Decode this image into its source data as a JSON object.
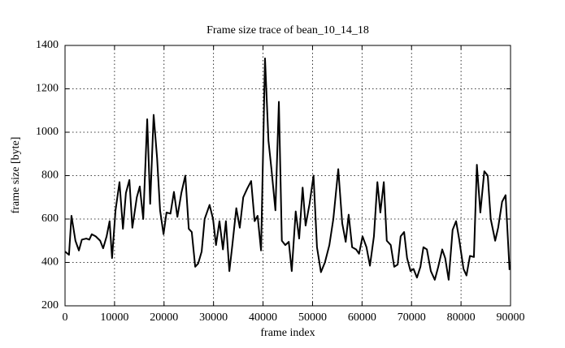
{
  "chart_data": {
    "type": "line",
    "title": "Frame size trace of bean_10_14_18",
    "xlabel": "frame index",
    "ylabel": "frame size [byte]",
    "x": [
      0,
      800,
      1300,
      2100,
      2800,
      3400,
      4300,
      4900,
      5400,
      6200,
      7100,
      7700,
      8400,
      9000,
      9500,
      10200,
      11000,
      11700,
      12300,
      13000,
      13600,
      14500,
      15100,
      15800,
      16600,
      17200,
      17900,
      18600,
      19200,
      19900,
      20500,
      21300,
      22000,
      22700,
      23500,
      24300,
      25000,
      25600,
      26300,
      26900,
      27600,
      28200,
      29200,
      29900,
      30500,
      31200,
      31900,
      32500,
      33200,
      33800,
      34600,
      35300,
      36000,
      36800,
      37600,
      38300,
      38900,
      39600,
      40400,
      41100,
      41700,
      42500,
      43200,
      43800,
      44500,
      45200,
      45800,
      46600,
      47300,
      48000,
      48600,
      49400,
      50200,
      50900,
      51700,
      52500,
      53400,
      54200,
      55200,
      56000,
      56700,
      57300,
      58000,
      58800,
      59400,
      60100,
      60900,
      61600,
      62400,
      63100,
      63700,
      64400,
      65000,
      65800,
      66500,
      67200,
      67800,
      68500,
      69100,
      69800,
      70400,
      71100,
      71800,
      72400,
      73100,
      73900,
      74700,
      75400,
      76200,
      76800,
      77500,
      78300,
      79000,
      79600,
      80500,
      81100,
      81800,
      82600,
      83200,
      83900,
      84700,
      85400,
      86000,
      86900,
      87500,
      88300,
      89000,
      89800
    ],
    "values": [
      450,
      435,
      615,
      500,
      455,
      505,
      510,
      505,
      530,
      520,
      500,
      465,
      520,
      590,
      420,
      640,
      770,
      555,
      720,
      780,
      560,
      700,
      750,
      600,
      1060,
      670,
      1080,
      880,
      640,
      530,
      630,
      625,
      725,
      610,
      720,
      800,
      555,
      540,
      380,
      395,
      450,
      600,
      665,
      600,
      480,
      590,
      460,
      590,
      360,
      480,
      650,
      560,
      700,
      740,
      775,
      590,
      615,
      455,
      1340,
      960,
      830,
      640,
      1140,
      500,
      480,
      495,
      360,
      635,
      510,
      745,
      570,
      670,
      800,
      470,
      355,
      400,
      480,
      600,
      830,
      580,
      495,
      620,
      470,
      460,
      440,
      520,
      470,
      385,
      520,
      770,
      630,
      770,
      500,
      480,
      380,
      390,
      520,
      540,
      420,
      360,
      370,
      330,
      380,
      470,
      460,
      360,
      320,
      380,
      460,
      420,
      320,
      550,
      590,
      510,
      370,
      340,
      430,
      425,
      850,
      630,
      820,
      800,
      600,
      500,
      560,
      680,
      710,
      365
    ],
    "color": "#000000",
    "xlim": [
      0,
      90000
    ],
    "xticks": [
      0,
      10000,
      20000,
      30000,
      40000,
      50000,
      60000,
      70000,
      80000,
      90000
    ],
    "ylim": [
      200,
      1400
    ],
    "yticks": [
      200,
      400,
      600,
      800,
      1000,
      1200,
      1400
    ],
    "grid": true
  }
}
